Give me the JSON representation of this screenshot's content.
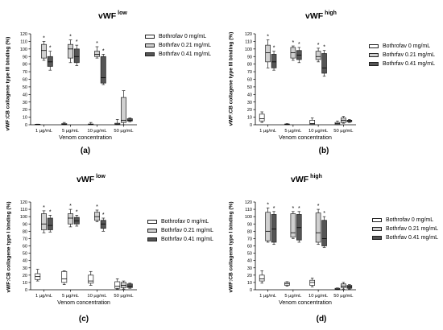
{
  "legend": {
    "labels_top": [
      "Bothrofav 0 mg/mL",
      "Bothrfav 0.21 mg/mL",
      "Bothrfav 0.41 mg/mL"
    ],
    "labels_bottom": [
      "Bothrofav 0 mg/mL",
      "Bothrfav 0.21 mg/mL",
      "Bothrfav 0.41 mg/mL"
    ],
    "colors": [
      "#ffffff",
      "#d0d0d0",
      "#555555"
    ]
  },
  "chart_data": [
    {
      "type": "box",
      "panel_label": "(a)",
      "title": "vWF",
      "title_sup": "low",
      "ylabel": "vWF:CB collagene type III binding (%)",
      "xlabel": "Venom concentration",
      "categories": [
        "1 µg/mL",
        "5 µg/mL",
        "10 µg/mL",
        "50 µg/mL"
      ],
      "ylim": [
        0,
        120
      ],
      "yticks": [
        0,
        10,
        20,
        30,
        40,
        50,
        60,
        70,
        80,
        90,
        100,
        110,
        120
      ],
      "series": [
        {
          "boxes": [
            [
              0.2,
              0.3,
              0.5,
              0.7,
              0.8
            ],
            [
              0,
              0.3,
              0.8,
              1.5,
              3
            ],
            [
              0,
              0.2,
              0.6,
              1,
              3
            ],
            [
              0,
              0.5,
              1,
              2,
              7
            ]
          ],
          "sig": [
            false,
            false,
            false,
            false
          ]
        },
        {
          "boxes": [
            [
              85,
              88,
              98,
              106,
              110
            ],
            [
              82,
              88,
              100,
              106,
              112
            ],
            [
              88,
              90,
              93,
              97,
              103
            ],
            [
              0,
              3,
              6,
              36,
              45
            ]
          ],
          "sig": [
            true,
            true,
            true,
            false
          ]
        },
        {
          "boxes": [
            [
              72,
              77,
              83,
              90,
              97
            ],
            [
              78,
              82,
              90,
              100,
              105
            ],
            [
              53,
              55,
              62,
              90,
              93
            ],
            [
              4,
              5,
              6,
              8,
              9
            ]
          ],
          "sig": [
            true,
            true,
            true,
            false
          ]
        }
      ]
    },
    {
      "type": "box",
      "panel_label": "(b)",
      "title": "vWF",
      "title_sup": "high",
      "ylabel": "vWF:CB collagene type III  binding (%)",
      "xlabel": "Venom concentration",
      "categories": [
        "1 µg/mL",
        "5 µg/mL",
        "10 µg/mL",
        "50 µg/mL"
      ],
      "ylim": [
        0,
        120
      ],
      "yticks": [
        0,
        10,
        20,
        30,
        40,
        50,
        60,
        70,
        80,
        90,
        100,
        110,
        120
      ],
      "series": [
        {
          "boxes": [
            [
              3,
              5,
              8,
              14,
              17
            ],
            [
              0,
              0.2,
              0.5,
              1,
              1.5
            ],
            [
              0,
              0.5,
              1.5,
              6,
              9
            ],
            [
              0,
              0.5,
              1.5,
              3,
              5
            ]
          ],
          "sig": [
            false,
            false,
            false,
            false
          ]
        },
        {
          "boxes": [
            [
              75,
              83,
              95,
              105,
              112
            ],
            [
              85,
              88,
              95,
              102,
              104
            ],
            [
              83,
              86,
              90,
              97,
              101
            ],
            [
              2,
              3,
              6,
              9,
              11
            ]
          ],
          "sig": [
            true,
            true,
            true,
            false
          ]
        },
        {
          "boxes": [
            [
              72,
              75,
              83,
              93,
              97
            ],
            [
              82,
              86,
              92,
              98,
              102
            ],
            [
              64,
              68,
              75,
              94,
              98
            ],
            [
              3,
              4,
              5,
              6,
              7
            ]
          ],
          "sig": [
            true,
            true,
            true,
            false
          ]
        }
      ]
    },
    {
      "type": "box",
      "panel_label": "(c)",
      "title": "vWF",
      "title_sup": "low",
      "ylabel": "vWF:CB collagene type I  binding (%)",
      "xlabel": "Venom concentration",
      "categories": [
        "1 µg/mL",
        "5 µg/mL",
        "10 µg/mL",
        "50 µg/mL"
      ],
      "ylim": [
        0,
        120
      ],
      "yticks": [
        0,
        10,
        20,
        30,
        40,
        50,
        60,
        70,
        80,
        90,
        100,
        110,
        120
      ],
      "series": [
        {
          "boxes": [
            [
              12,
              14,
              18,
              22,
              28
            ],
            [
              7,
              10,
              15,
              25,
              26
            ],
            [
              6,
              9,
              12,
              20,
              25
            ],
            [
              1,
              2,
              5,
              11,
              15
            ]
          ],
          "sig": [
            false,
            false,
            false,
            false
          ]
        },
        {
          "boxes": [
            [
              78,
              82,
              90,
              104,
              108
            ],
            [
              86,
              90,
              98,
              104,
              110
            ],
            [
              93,
              95,
              100,
              106,
              109
            ],
            [
              1,
              3,
              6,
              10,
              12
            ]
          ],
          "sig": [
            true,
            true,
            true,
            false
          ]
        },
        {
          "boxes": [
            [
              79,
              82,
              88,
              98,
              102
            ],
            [
              87,
              90,
              94,
              99,
              102
            ],
            [
              80,
              84,
              90,
              95,
              98
            ],
            [
              2,
              3,
              5,
              8,
              9
            ]
          ],
          "sig": [
            true,
            true,
            true,
            false
          ]
        }
      ]
    },
    {
      "type": "box",
      "panel_label": "(d)",
      "title": "vWF",
      "title_sup": "high",
      "ylabel": "vWF:CB collagene type I binding (%)",
      "xlabel": "Venom concentration",
      "categories": [
        "1 µg/mL",
        "5 µg/mL",
        "10 µg/mL",
        "50 µg/mL"
      ],
      "ylim": [
        0,
        120
      ],
      "yticks": [
        0,
        10,
        20,
        30,
        40,
        50,
        60,
        70,
        80,
        90,
        100,
        110,
        120
      ],
      "series": [
        {
          "boxes": [
            [
              9,
              12,
              15,
              20,
              26
            ],
            [
              5,
              6,
              8,
              10,
              11
            ],
            [
              4,
              6,
              10,
              13,
              16
            ],
            [
              0,
              0.5,
              1,
              2,
              2.5
            ]
          ],
          "sig": [
            false,
            false,
            false,
            false
          ]
        },
        {
          "boxes": [
            [
              65,
              67,
              80,
              106,
              112
            ],
            [
              70,
              72,
              78,
              104,
              107
            ],
            [
              62,
              65,
              78,
              105,
              110
            ],
            [
              1,
              3,
              5,
              8,
              10
            ]
          ],
          "sig": [
            true,
            true,
            true,
            false
          ]
        },
        {
          "boxes": [
            [
              62,
              65,
              83,
              103,
              107
            ],
            [
              65,
              68,
              85,
              103,
              107
            ],
            [
              58,
              60,
              70,
              95,
              100
            ],
            [
              1,
              2,
              4,
              6,
              7
            ]
          ],
          "sig": [
            true,
            true,
            true,
            false
          ]
        }
      ]
    }
  ]
}
